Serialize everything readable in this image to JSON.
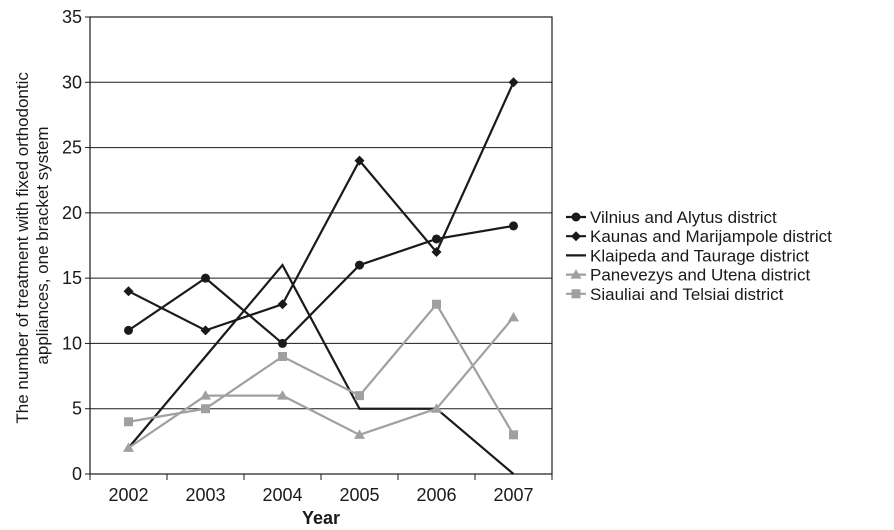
{
  "chart_data": {
    "type": "line",
    "x": [
      "2002",
      "2003",
      "2004",
      "2005",
      "2006",
      "2007"
    ],
    "xlabel": "Year",
    "ylabel": [
      "The number of treatment with fixed orthodontic",
      "appliances, one bracket system"
    ],
    "ylim": [
      0,
      35
    ],
    "yticks": [
      0,
      5,
      10,
      15,
      20,
      25,
      30,
      35
    ],
    "grid": "horizontal",
    "legend_position": "right",
    "series": [
      {
        "name": "Vilnius and Alytus district",
        "values": [
          11,
          15,
          10,
          16,
          18,
          19
        ],
        "color": "#1a1a1a",
        "marker": "circle"
      },
      {
        "name": "Kaunas and Marijampole district",
        "values": [
          14,
          11,
          13,
          24,
          17,
          30
        ],
        "color": "#1a1a1a",
        "marker": "diamond"
      },
      {
        "name": "Klaipeda and Taurage district",
        "values": [
          2,
          9,
          16,
          5,
          5,
          0
        ],
        "color": "#1a1a1a",
        "marker": "none"
      },
      {
        "name": "Panevezys and Utena district",
        "values": [
          2,
          6,
          6,
          3,
          5,
          12
        ],
        "color": "#a0a0a0",
        "marker": "triangle"
      },
      {
        "name": "Siauliai and Telsiai district",
        "values": [
          4,
          5,
          9,
          6,
          13,
          3
        ],
        "color": "#a0a0a0",
        "marker": "square"
      }
    ]
  }
}
